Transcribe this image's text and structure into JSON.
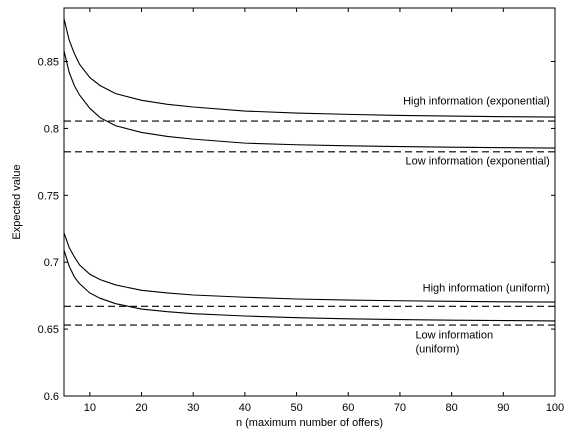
{
  "chart_data": {
    "type": "line",
    "title": "",
    "xlabel": "n (maximum number of offers)",
    "ylabel": "Expected value",
    "xlim": [
      5,
      100
    ],
    "ylim": [
      0.6,
      0.89
    ],
    "x_ticks": [
      10,
      20,
      30,
      40,
      50,
      60,
      70,
      80,
      90,
      100
    ],
    "y_ticks": [
      0.6,
      0.65,
      0.7,
      0.75,
      0.8,
      0.85
    ],
    "x_tick_labels": [
      "10",
      "20",
      "30",
      "40",
      "50",
      "60",
      "70",
      "80",
      "90",
      "100"
    ],
    "y_tick_labels": [
      "0.6",
      "0.65",
      "0.7",
      "0.75",
      "0.8",
      "0.85"
    ],
    "grid": false,
    "legend": "none",
    "series": [
      {
        "style": "solid",
        "x": [
          5,
          6,
          7,
          8,
          10,
          12,
          15,
          20,
          25,
          30,
          40,
          50,
          60,
          70,
          80,
          90,
          100
        ],
        "y": [
          0.882,
          0.866,
          0.856,
          0.848,
          0.838,
          0.832,
          0.826,
          0.821,
          0.818,
          0.816,
          0.813,
          0.8115,
          0.8105,
          0.8097,
          0.8092,
          0.8088,
          0.8085
        ]
      },
      {
        "style": "solid",
        "x": [
          5,
          6,
          7,
          8,
          10,
          12,
          15,
          20,
          25,
          30,
          40,
          50,
          60,
          70,
          80,
          90,
          100
        ],
        "y": [
          0.858,
          0.842,
          0.832,
          0.825,
          0.815,
          0.808,
          0.802,
          0.797,
          0.794,
          0.792,
          0.789,
          0.7878,
          0.787,
          0.7864,
          0.786,
          0.7856,
          0.7853
        ]
      },
      {
        "style": "dashed",
        "x": [
          5,
          100
        ],
        "y": [
          0.8055,
          0.8055
        ]
      },
      {
        "style": "dashed",
        "x": [
          5,
          100
        ],
        "y": [
          0.7825,
          0.7825
        ]
      },
      {
        "style": "solid",
        "x": [
          5,
          6,
          7,
          8,
          10,
          12,
          15,
          20,
          25,
          30,
          40,
          50,
          60,
          70,
          80,
          90,
          100
        ],
        "y": [
          0.722,
          0.711,
          0.704,
          0.698,
          0.691,
          0.687,
          0.683,
          0.679,
          0.677,
          0.6755,
          0.6738,
          0.6725,
          0.6717,
          0.6712,
          0.6708,
          0.6704,
          0.6702
        ]
      },
      {
        "style": "solid",
        "x": [
          5,
          6,
          7,
          8,
          10,
          12,
          15,
          20,
          25,
          30,
          40,
          50,
          60,
          70,
          80,
          90,
          100
        ],
        "y": [
          0.709,
          0.697,
          0.689,
          0.684,
          0.677,
          0.673,
          0.669,
          0.665,
          0.663,
          0.6615,
          0.6598,
          0.6585,
          0.6577,
          0.6571,
          0.6567,
          0.6564,
          0.6561
        ]
      },
      {
        "style": "dashed",
        "x": [
          5,
          100
        ],
        "y": [
          0.667,
          0.667
        ]
      },
      {
        "style": "dashed",
        "x": [
          5,
          100
        ],
        "y": [
          0.653,
          0.653
        ]
      }
    ],
    "annotations": [
      {
        "lines": [
          "High information (exponential)"
        ],
        "x": 99,
        "y": 0.818,
        "anchor": "end"
      },
      {
        "lines": [
          "Low information (exponential)"
        ],
        "x": 99,
        "y": 0.773,
        "anchor": "end"
      },
      {
        "lines": [
          "High information (uniform)"
        ],
        "x": 99,
        "y": 0.678,
        "anchor": "end"
      },
      {
        "lines": [
          "Low information",
          "(uniform)"
        ],
        "x": 73,
        "y": 0.643,
        "anchor": "start"
      }
    ]
  }
}
